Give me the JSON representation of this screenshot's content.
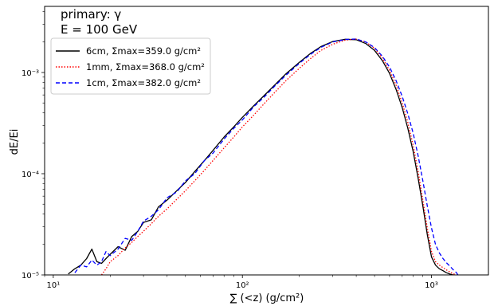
{
  "chart_data": {
    "type": "line",
    "xscale": "log",
    "yscale": "log",
    "xlim": [
      9,
      2000
    ],
    "ylim": [
      1e-05,
      0.0045
    ],
    "xlabel": "∑ (<z) (g/cm²)",
    "ylabel": "dE/Ei",
    "x_ticks": [
      {
        "value": 10,
        "label": "10¹"
      },
      {
        "value": 100,
        "label": "10²"
      },
      {
        "value": 1000,
        "label": "10³"
      }
    ],
    "y_ticks": [
      {
        "value": 1e-05,
        "label": "10⁻⁵"
      },
      {
        "value": 0.0001,
        "label": "10⁻⁴"
      },
      {
        "value": 0.001,
        "label": "10⁻³"
      }
    ],
    "annotations": [
      "primary: γ",
      "E = 100 GeV"
    ],
    "legend_position": "upper-left",
    "grid": false,
    "series": [
      {
        "name": "6cm, Σmax=359.0 g/cm²",
        "color": "#000000",
        "style": "solid",
        "x": [
          12,
          13,
          14,
          15,
          16,
          17,
          18,
          19,
          20,
          22,
          24,
          26,
          28,
          30,
          33,
          36,
          40,
          45,
          50,
          56,
          63,
          70,
          80,
          90,
          100,
          115,
          130,
          150,
          170,
          200,
          230,
          260,
          300,
          350,
          400,
          450,
          500,
          550,
          600,
          650,
          700,
          750,
          800,
          850,
          900,
          950,
          1000,
          1050,
          1100,
          1150,
          1200,
          1250,
          1300
        ],
        "y": [
          1.02e-05,
          1.15e-05,
          1.25e-05,
          1.45e-05,
          1.8e-05,
          1.35e-05,
          1.3e-05,
          1.45e-05,
          1.6e-05,
          1.9e-05,
          1.75e-05,
          2.4e-05,
          2.7e-05,
          3.3e-05,
          3.5e-05,
          4.7e-05,
          5.5e-05,
          6.8e-05,
          8.2e-05,
          0.000105,
          0.000135,
          0.00017,
          0.00023,
          0.00029,
          0.00036,
          0.00047,
          0.00059,
          0.00077,
          0.00097,
          0.00126,
          0.00155,
          0.0018,
          0.00202,
          0.00213,
          0.00211,
          0.00193,
          0.00165,
          0.00131,
          0.00098,
          0.00068,
          0.00045,
          0.00028,
          0.000165,
          9e-05,
          4.8e-05,
          2.5e-05,
          1.5e-05,
          1.25e-05,
          1.15e-05,
          1.1e-05,
          1.05e-05,
          1.02e-05,
          1e-05
        ]
      },
      {
        "name": "1mm, Σmax=368.0 g/cm²",
        "color": "#ff0000",
        "style": "dotted",
        "x": [
          18,
          19,
          20,
          22,
          24,
          26,
          28,
          30,
          33,
          36,
          40,
          45,
          50,
          56,
          63,
          70,
          80,
          90,
          100,
          115,
          130,
          150,
          170,
          200,
          230,
          260,
          300,
          350,
          400,
          450,
          500,
          550,
          600,
          650,
          700,
          750,
          800,
          850,
          900,
          950,
          1000,
          1050,
          1100,
          1150,
          1200,
          1250,
          1300,
          1350
        ],
        "y": [
          1e-05,
          1.15e-05,
          1.35e-05,
          1.55e-05,
          1.85e-05,
          2.1e-05,
          2.4e-05,
          2.7e-05,
          3.2e-05,
          3.8e-05,
          4.5e-05,
          5.6e-05,
          6.8e-05,
          8.5e-05,
          0.000108,
          0.000135,
          0.00018,
          0.00023,
          0.00029,
          0.00038,
          0.00049,
          0.00065,
          0.00083,
          0.0011,
          0.00138,
          0.00165,
          0.0019,
          0.00209,
          0.00214,
          0.002,
          0.00173,
          0.00139,
          0.00105,
          0.00075,
          0.0005,
          0.00032,
          0.00019,
          0.000105,
          5.5e-05,
          2.9e-05,
          1.7e-05,
          1.35e-05,
          1.25e-05,
          1.18e-05,
          1.12e-05,
          1.07e-05,
          1.03e-05,
          1e-05
        ]
      },
      {
        "name": "1cm, Σmax=382.0 g/cm²",
        "color": "#0000ff",
        "style": "dashed",
        "x": [
          13,
          14,
          15,
          16,
          17,
          18,
          19,
          20,
          22,
          24,
          26,
          28,
          30,
          33,
          36,
          40,
          45,
          50,
          56,
          63,
          70,
          80,
          90,
          100,
          115,
          130,
          150,
          170,
          200,
          230,
          260,
          300,
          350,
          400,
          450,
          500,
          550,
          600,
          650,
          700,
          750,
          800,
          850,
          900,
          950,
          1000,
          1050,
          1100,
          1150,
          1200,
          1250,
          1300,
          1350,
          1380
        ],
        "y": [
          1.05e-05,
          1.25e-05,
          1.2e-05,
          1.4e-05,
          1.25e-05,
          1.35e-05,
          1.7e-05,
          1.55e-05,
          1.8e-05,
          2.3e-05,
          2.2e-05,
          2.7e-05,
          3.4e-05,
          3.8e-05,
          4.4e-05,
          5.8e-05,
          6.6e-05,
          8.5e-05,
          0.0001,
          0.000135,
          0.00016,
          0.00022,
          0.00028,
          0.00034,
          0.00046,
          0.00057,
          0.00075,
          0.00094,
          0.00123,
          0.00152,
          0.00177,
          0.002,
          0.00212,
          0.00214,
          0.002,
          0.00176,
          0.00145,
          0.00113,
          0.00083,
          0.00058,
          0.00039,
          0.00025,
          0.00015,
          8.5e-05,
          4.8e-05,
          2.9e-05,
          2e-05,
          1.65e-05,
          1.45e-05,
          1.32e-05,
          1.22e-05,
          1.13e-05,
          1.06e-05,
          1e-05
        ]
      }
    ]
  }
}
